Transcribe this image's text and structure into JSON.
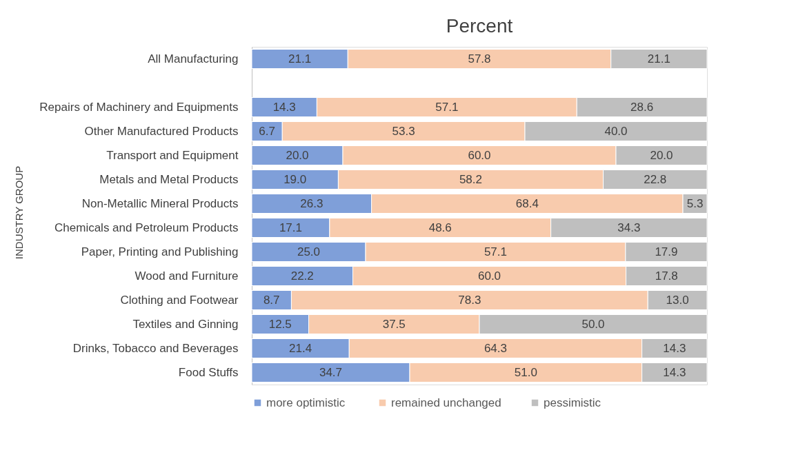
{
  "chart_data": {
    "type": "bar",
    "orientation": "horizontal",
    "stacked": true,
    "title": "Percent",
    "ylabel": "INDUSTRY GROUP",
    "legend": "bottom",
    "categories": [
      "All Manufacturing",
      null,
      "Repairs of Machinery and Equipments",
      "Other Manufactured Products",
      "Transport and Equipment",
      "Metals and Metal Products",
      "Non-Metallic Mineral Products",
      "Chemicals and Petroleum Products",
      "Paper, Printing and Publishing",
      "Wood and Furniture",
      "Clothing and Footwear",
      "Textiles and Ginning",
      "Drinks, Tobacco and Beverages",
      "Food Stuffs"
    ],
    "series": [
      {
        "name": "more  optimistic",
        "color": "#7f9fd9",
        "values": [
          21.1,
          null,
          14.3,
          6.7,
          20.0,
          19.0,
          26.3,
          17.1,
          25.0,
          22.2,
          8.7,
          12.5,
          21.4,
          34.7
        ],
        "value_labels": [
          "21.1",
          null,
          "14.3",
          "6.7",
          "20.0",
          "19.0",
          "26.3",
          "17.1",
          "25.0",
          "22.2",
          "8.7",
          "12.5",
          "21.4",
          "34.7"
        ]
      },
      {
        "name": "remained unchanged",
        "color": "#f8cbad",
        "values": [
          57.8,
          null,
          57.1,
          53.3,
          60.0,
          58.2,
          68.4,
          48.6,
          57.1,
          60.0,
          78.3,
          37.5,
          64.3,
          51.0
        ],
        "value_labels": [
          "57.8",
          null,
          "57.1",
          "53.3",
          "60.0",
          "58.2",
          "68.4",
          "48.6",
          "57.1",
          "60.0",
          "78.3",
          "37.5",
          "64.3",
          "51.0"
        ]
      },
      {
        "name": "pessimistic",
        "color": "#bfbfbf",
        "values": [
          21.1,
          null,
          28.6,
          40.0,
          20.0,
          22.8,
          5.3,
          34.3,
          17.9,
          17.8,
          13.0,
          50.0,
          14.3,
          14.3
        ],
        "value_labels": [
          "21.1",
          null,
          "28.6",
          "40.0",
          "20.0",
          "22.8",
          "5.3",
          "34.3",
          "17.9",
          "17.8",
          "13.0",
          "50.0",
          "14.3",
          "14.3"
        ]
      }
    ]
  }
}
